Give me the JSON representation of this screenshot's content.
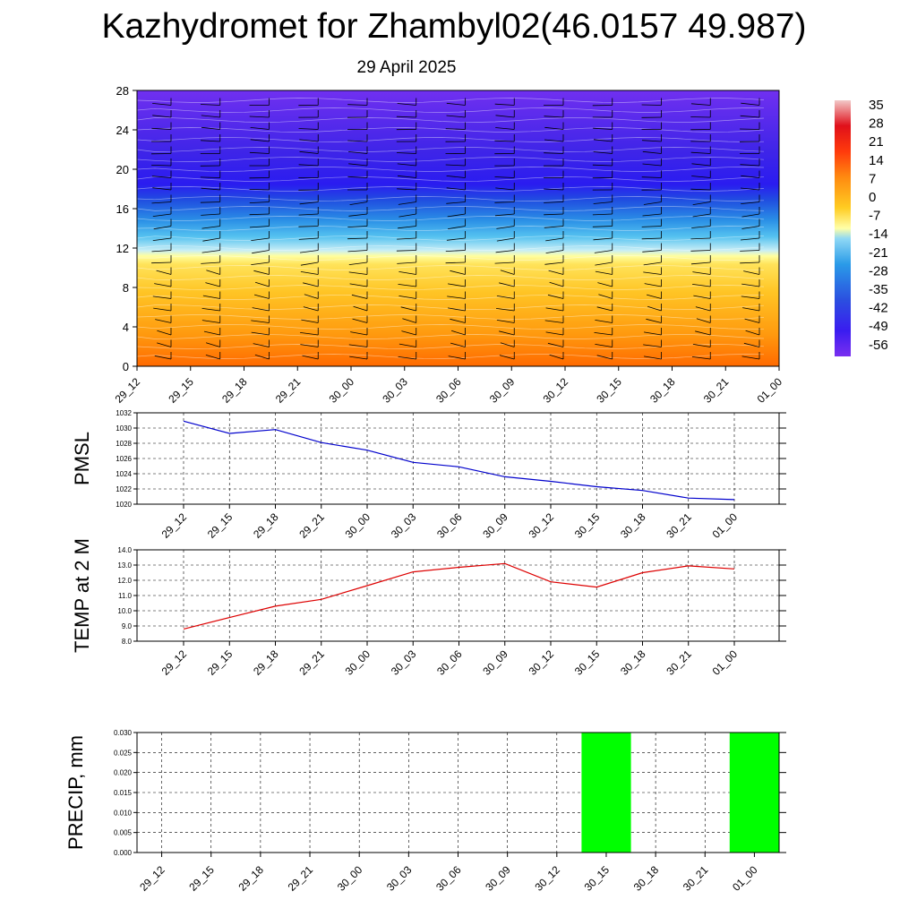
{
  "title": "Kazhydromet for Zhambyl02(46.0157 49.987)",
  "subtitle": "29 April 2025",
  "time_labels": [
    "29_12",
    "29_15",
    "29_18",
    "29_21",
    "30_00",
    "30_03",
    "30_06",
    "30_09",
    "30_12",
    "30_15",
    "30_18",
    "30_21",
    "01_00"
  ],
  "colorbar": {
    "labels": [
      "35",
      "28",
      "21",
      "14",
      "7",
      "0",
      "-7",
      "-14",
      "-21",
      "-28",
      "-35",
      "-42",
      "-49",
      "-56"
    ]
  },
  "colors": {
    "pmsl_line": "#0000cc",
    "temp_line": "#dd0000",
    "precip_bar": "#00ff00"
  },
  "chart_data": [
    {
      "type": "heatmap",
      "name": "upper-air temperature cross-section",
      "x": [
        "29_12",
        "29_15",
        "29_18",
        "29_21",
        "30_00",
        "30_03",
        "30_06",
        "30_09",
        "30_12",
        "30_15",
        "30_18",
        "30_21",
        "01_00"
      ],
      "yticks": [
        0,
        4,
        8,
        12,
        16,
        20,
        24,
        28
      ],
      "ylim": [
        0,
        28
      ],
      "colorbar_ticks": [
        35,
        28,
        21,
        14,
        7,
        0,
        -7,
        -14,
        -21,
        -28,
        -35,
        -42,
        -49,
        -56
      ],
      "colorscale_range": [
        -60,
        38
      ],
      "overlay": "wind barbs"
    },
    {
      "type": "line",
      "ylabel": "PMSL",
      "x": [
        "29_12",
        "29_15",
        "29_18",
        "29_21",
        "30_00",
        "30_03",
        "30_06",
        "30_09",
        "30_12",
        "30_15",
        "30_18",
        "30_21",
        "01_00"
      ],
      "values": [
        1030.9,
        1029.3,
        1029.8,
        1028.1,
        1027.1,
        1025.5,
        1024.9,
        1023.6,
        1023.0,
        1022.3,
        1021.8,
        1020.8,
        1020.6
      ],
      "ylim": [
        1020,
        1032
      ],
      "yticks": [
        "1020",
        "1022",
        "1024",
        "1026",
        "1028",
        "1030",
        "1032"
      ],
      "grid": true
    },
    {
      "type": "line",
      "ylabel": "TEMP at 2 M",
      "x": [
        "29_12",
        "29_15",
        "29_18",
        "29_21",
        "30_00",
        "30_03",
        "30_06",
        "30_09",
        "30_12",
        "30_15",
        "30_18",
        "30_21",
        "01_00"
      ],
      "values": [
        8.8,
        9.55,
        10.3,
        10.75,
        11.65,
        12.55,
        12.85,
        13.1,
        11.9,
        11.55,
        12.5,
        12.95,
        12.75
      ],
      "ylim": [
        8.0,
        14.0
      ],
      "yticks": [
        "8.0",
        "9.0",
        "10.0",
        "11.0",
        "12.0",
        "13.0",
        "14.0"
      ],
      "grid": true
    },
    {
      "type": "bar",
      "ylabel": "PRECIP, mm",
      "categories": [
        "29_12",
        "29_15",
        "29_18",
        "29_21",
        "30_00",
        "30_03",
        "30_06",
        "30_09",
        "30_12",
        "30_15",
        "30_18",
        "30_21",
        "01_00"
      ],
      "values": [
        0,
        0,
        0,
        0,
        0,
        0,
        0,
        0,
        0,
        0.03,
        0,
        0,
        0.03
      ],
      "ylim": [
        0,
        0.03
      ],
      "yticks": [
        "0.000",
        "0.005",
        "0.010",
        "0.015",
        "0.020",
        "0.025",
        "0.030"
      ],
      "grid": true
    }
  ]
}
